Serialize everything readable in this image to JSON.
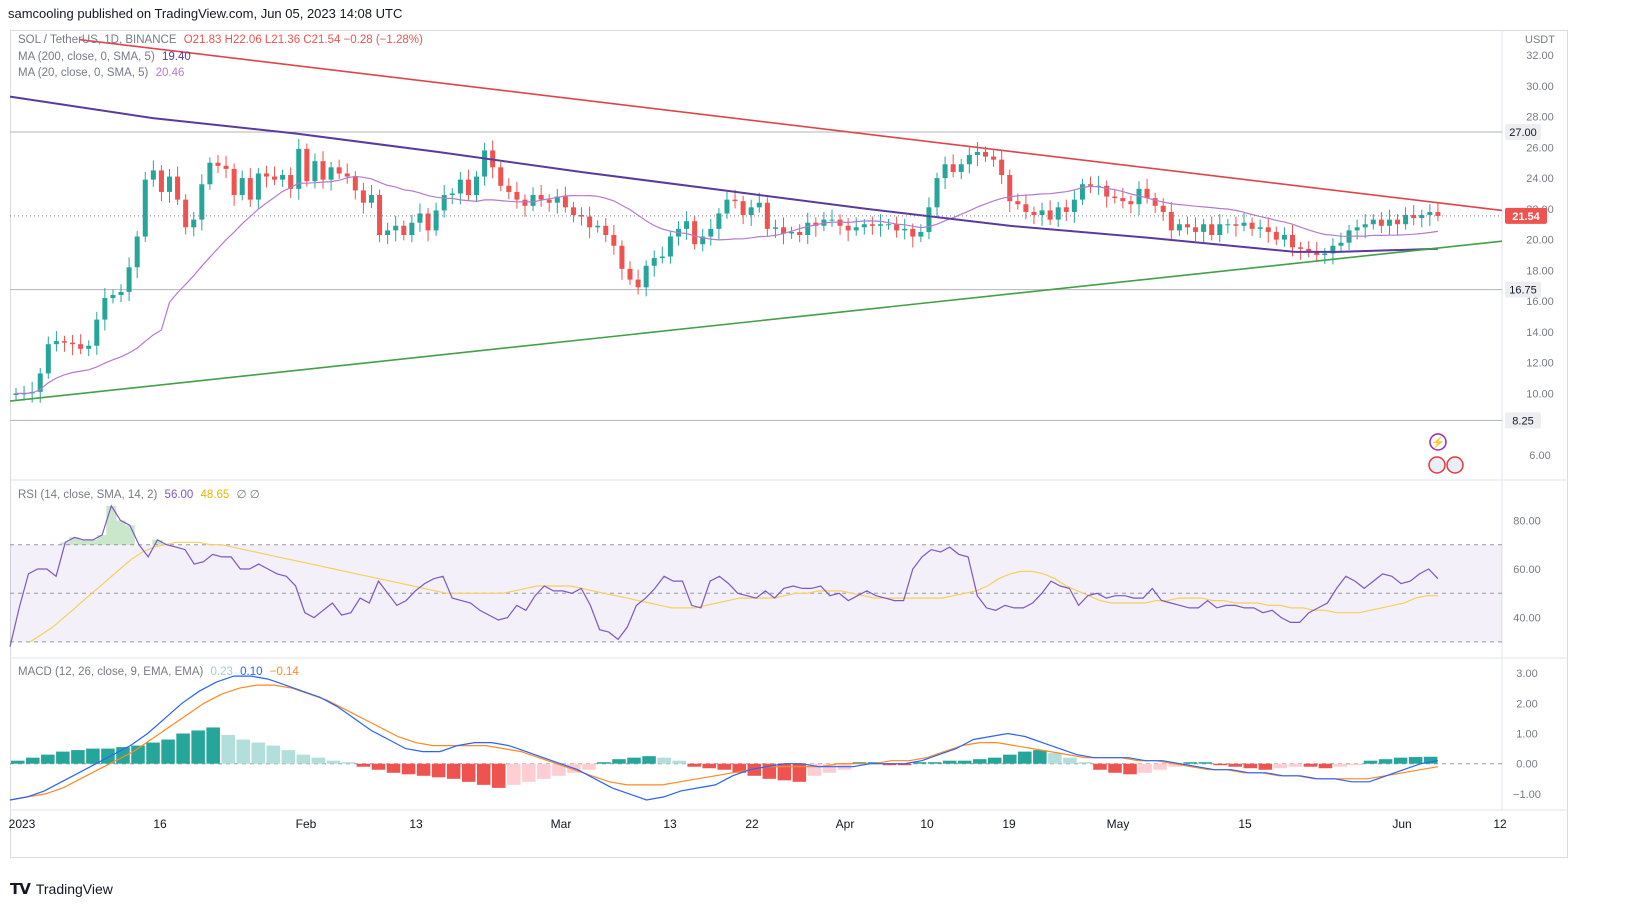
{
  "header": {
    "publisher": "samcooling published on TradingView.com, Jun 05, 2023 14:08 UTC"
  },
  "main_legend": {
    "symbol": "SOL / TetherUS, 1D, BINANCE",
    "ohlc": "O21.83  H22.06  L21.36  C21.54  −0.28 (−1.28%)",
    "ma200_label": "MA (200, close, 0, SMA, 5)",
    "ma200_value": "19.40",
    "ma20_label": "MA (20, close, 0, SMA, 5)",
    "ma20_value": "20.46"
  },
  "rsi_legend": {
    "label": "RSI (14, close, SMA, 14, 2)",
    "v1": "56.00",
    "v2": "48.65",
    "v3": "∅ ∅"
  },
  "macd_legend": {
    "label": "MACD (12, 26, close, 9, EMA, EMA)",
    "v1": "0.23",
    "v2": "0.10",
    "v3": "−0.14"
  },
  "footer": {
    "brand": "TradingView"
  },
  "colors": {
    "up": "#26a69a",
    "down": "#ef5350",
    "ma200": "#5b3aa0",
    "ma20": "#b57ad0",
    "trend_upper": "#e0434b",
    "trend_lower": "#43a047",
    "rsi": "#7e57c2",
    "rsi_ma": "#f5d05c",
    "macd": "#2962ff",
    "signal": "#ff8a20"
  },
  "chart_data": {
    "type": "candlestick",
    "title": "SOL / TetherUS, 1D, BINANCE",
    "currency": "USDT",
    "x_ticks": [
      "2023",
      "16",
      "Feb",
      "13",
      "Mar",
      "13",
      "22",
      "Apr",
      "10",
      "19",
      "May",
      "15",
      "Jun",
      "12"
    ],
    "y_ticks": [
      "32.00",
      "30.00",
      "28.00",
      "26.00",
      "24.00",
      "22.00",
      "20.00",
      "18.00",
      "16.00",
      "14.00",
      "12.00",
      "10.00",
      "6.00"
    ],
    "ylim": [
      4.5,
      33.5
    ],
    "price_close_series": [
      10.0,
      10.0,
      10.1,
      11.3,
      13.2,
      13.4,
      13.3,
      13.2,
      12.9,
      13.1,
      14.8,
      16.2,
      16.4,
      16.6,
      18.2,
      20.2,
      23.9,
      24.5,
      23.1,
      24.1,
      22.6,
      20.8,
      21.3,
      23.6,
      25.0,
      24.8,
      24.6,
      22.9,
      24.0,
      22.6,
      24.3,
      24.1,
      23.9,
      24.2,
      23.3,
      25.9,
      23.8,
      25.1,
      23.9,
      24.7,
      24.3,
      24.1,
      23.2,
      22.4,
      22.9,
      20.3,
      20.6,
      20.9,
      20.3,
      21.1,
      21.7,
      20.6,
      21.9,
      22.9,
      23.0,
      23.9,
      22.9,
      24.1,
      25.8,
      24.7,
      23.5,
      23.1,
      22.6,
      22.2,
      22.9,
      22.6,
      22.4,
      22.8,
      22.1,
      21.6,
      21.5,
      20.8,
      20.9,
      20.3,
      19.6,
      18.1,
      17.4,
      16.9,
      18.3,
      18.8,
      18.9,
      20.2,
      20.7,
      21.2,
      19.7,
      20.2,
      20.7,
      21.7,
      22.6,
      22.5,
      21.6,
      22.1,
      22.4,
      20.7,
      20.8,
      20.4,
      20.5,
      20.3,
      21.1,
      20.9,
      21.3,
      21.3,
      20.9,
      20.6,
      20.8,
      21.0,
      20.9,
      21.0,
      21.0,
      20.6,
      20.7,
      20.2,
      20.5,
      22.1,
      24.0,
      24.9,
      24.4,
      24.9,
      25.5,
      25.7,
      25.4,
      25.2,
      24.2,
      22.5,
      22.3,
      21.8,
      21.6,
      21.9,
      21.3,
      22.1,
      21.8,
      22.6,
      23.6,
      23.5,
      23.5,
      22.8,
      22.7,
      22.5,
      22.3,
      23.3,
      22.7,
      22.2,
      21.8,
      20.6,
      21.0,
      20.8,
      20.5,
      21.0,
      20.3,
      21.0,
      21.0,
      20.9,
      21.1,
      20.7,
      20.8,
      20.5,
      20.0,
      20.3,
      19.5,
      19.4,
      19.2,
      19.0,
      19.1,
      19.6,
      19.8,
      20.6,
      20.8,
      21.0,
      21.3,
      20.9,
      21.3,
      21.0,
      21.6,
      21.4,
      21.6,
      21.8,
      21.54
    ],
    "last_price": "21.54",
    "horizontal_levels": [
      "27.00",
      "16.75",
      "8.25"
    ],
    "ma200_last": "19.40",
    "ma20_last": "20.46",
    "annotations": [
      "trend-line resistance (red)",
      "trend-line support (green)"
    ],
    "rsi": {
      "ylim": [
        25,
        95
      ],
      "y_ticks": [
        "80.00",
        "60.00",
        "40.00"
      ],
      "band": [
        30,
        70
      ],
      "midline": 50,
      "values": [
        28,
        44,
        58,
        60,
        60,
        57,
        71,
        73,
        72,
        72,
        74,
        86,
        80,
        78,
        70,
        65,
        72,
        70,
        69,
        68,
        62,
        63,
        66,
        65,
        65,
        60,
        60,
        62,
        60,
        58,
        57,
        53,
        42,
        40,
        43,
        46,
        41,
        42,
        48,
        46,
        55,
        50,
        45,
        47,
        51,
        54,
        56,
        57,
        48,
        47,
        46,
        43,
        41,
        39,
        40,
        45,
        43,
        49,
        53,
        51,
        51,
        50,
        52,
        45,
        35,
        34,
        31,
        36,
        45,
        48,
        52,
        57,
        55,
        55,
        45,
        44,
        55,
        57,
        54,
        50,
        49,
        48,
        51,
        48,
        52,
        53,
        52,
        52,
        53,
        49,
        50,
        47,
        49,
        51,
        49,
        48,
        47,
        47,
        60,
        65,
        68,
        67,
        69,
        66,
        65,
        49,
        44,
        43,
        45,
        44,
        44,
        46,
        50,
        55,
        53,
        52,
        45,
        49,
        50,
        48,
        49,
        49,
        48,
        48,
        52,
        47,
        46,
        45,
        44,
        44,
        47,
        44,
        45,
        45,
        44,
        44,
        42,
        43,
        40,
        38,
        38,
        42,
        44,
        46,
        52,
        57,
        55,
        52,
        55,
        58,
        57,
        54,
        55,
        58,
        60,
        56
      ],
      "rsi_ma": [
        30,
        33,
        36,
        40,
        44,
        48,
        52,
        56,
        60,
        64,
        67,
        69,
        70,
        71,
        71,
        71,
        70,
        70,
        69,
        68,
        67,
        66,
        65,
        64,
        63,
        62,
        61,
        60,
        59,
        58,
        57,
        56,
        55,
        54,
        53,
        52,
        51,
        50,
        50,
        50,
        50,
        50,
        50,
        51,
        52,
        53,
        53,
        53,
        53,
        52,
        51,
        50,
        49,
        48,
        47,
        46,
        45,
        44,
        44,
        44,
        45,
        46,
        47,
        48,
        48,
        48,
        48,
        49,
        50,
        50,
        51,
        51,
        51,
        50,
        49,
        48,
        48,
        48,
        48,
        48,
        48,
        48,
        49,
        50,
        51,
        53,
        56,
        58,
        59,
        59,
        58,
        56,
        53,
        51,
        49,
        47,
        46,
        46,
        46,
        46,
        47,
        47,
        48,
        48,
        48,
        47,
        47,
        46,
        46,
        46,
        45,
        45,
        44,
        44,
        43,
        43,
        42,
        42,
        42,
        43,
        44,
        45,
        46,
        48,
        49,
        49
      ]
    },
    "macd": {
      "ylim": [
        -1.4,
        3.3
      ],
      "y_ticks": [
        "3.00",
        "2.00",
        "1.00",
        "0.00",
        "−1.00"
      ],
      "macd_line": [
        -1.2,
        -1.1,
        -0.9,
        -0.6,
        -0.3,
        0.0,
        0.3,
        0.6,
        1.0,
        1.5,
        2.0,
        2.4,
        2.7,
        2.9,
        2.9,
        2.8,
        2.6,
        2.4,
        2.2,
        1.9,
        1.5,
        1.1,
        0.8,
        0.5,
        0.4,
        0.4,
        0.6,
        0.7,
        0.7,
        0.6,
        0.4,
        0.2,
        0.0,
        -0.2,
        -0.5,
        -0.8,
        -1.0,
        -1.2,
        -1.1,
        -0.9,
        -0.8,
        -0.7,
        -0.4,
        -0.2,
        -0.1,
        0.0,
        0.0,
        -0.1,
        -0.1,
        -0.1,
        0.0,
        0.0,
        0.0,
        0.1,
        0.3,
        0.5,
        0.8,
        0.9,
        1.0,
        0.9,
        0.7,
        0.5,
        0.3,
        0.2,
        0.2,
        0.2,
        0.1,
        0.1,
        0.0,
        -0.1,
        -0.2,
        -0.2,
        -0.3,
        -0.3,
        -0.4,
        -0.4,
        -0.5,
        -0.5,
        -0.6,
        -0.6,
        -0.4,
        -0.2,
        0.0,
        0.1
      ],
      "signal_line": [
        -1.2,
        -1.1,
        -1.0,
        -0.8,
        -0.5,
        -0.2,
        0.1,
        0.4,
        0.8,
        1.2,
        1.6,
        2.0,
        2.3,
        2.5,
        2.6,
        2.6,
        2.5,
        2.3,
        2.1,
        1.8,
        1.5,
        1.2,
        0.9,
        0.7,
        0.6,
        0.6,
        0.6,
        0.6,
        0.5,
        0.4,
        0.2,
        0.0,
        -0.2,
        -0.4,
        -0.6,
        -0.7,
        -0.7,
        -0.7,
        -0.6,
        -0.5,
        -0.4,
        -0.3,
        -0.2,
        -0.1,
        -0.1,
        -0.1,
        -0.1,
        0.0,
        0.0,
        0.0,
        0.1,
        0.1,
        0.2,
        0.4,
        0.6,
        0.7,
        0.7,
        0.6,
        0.5,
        0.4,
        0.3,
        0.2,
        0.2,
        0.2,
        0.1,
        0.1,
        0.0,
        -0.1,
        -0.2,
        -0.2,
        -0.3,
        -0.3,
        -0.4,
        -0.4,
        -0.5,
        -0.5,
        -0.5,
        -0.5,
        -0.4,
        -0.3,
        -0.2,
        -0.1
      ],
      "histogram": [
        0.1,
        0.2,
        0.3,
        0.4,
        0.45,
        0.5,
        0.5,
        0.55,
        0.6,
        0.7,
        0.8,
        1.0,
        1.1,
        1.2,
        0.95,
        0.8,
        0.7,
        0.6,
        0.45,
        0.3,
        0.2,
        0.1,
        0.05,
        -0.1,
        -0.2,
        -0.3,
        -0.35,
        -0.4,
        -0.45,
        -0.5,
        -0.6,
        -0.7,
        -0.8,
        -0.7,
        -0.6,
        -0.5,
        -0.4,
        -0.3,
        -0.2,
        0.05,
        0.15,
        0.2,
        0.25,
        0.2,
        0.1,
        -0.1,
        -0.15,
        -0.2,
        -0.3,
        -0.4,
        -0.5,
        -0.55,
        -0.6,
        -0.4,
        -0.3,
        -0.2,
        0.05,
        0.05,
        -0.05,
        -0.05,
        0.05,
        0.05,
        0.1,
        0.1,
        0.15,
        0.2,
        0.3,
        0.4,
        0.45,
        0.35,
        0.2,
        0.05,
        -0.2,
        -0.3,
        -0.35,
        -0.3,
        -0.2,
        -0.1,
        0.05,
        0.05,
        -0.05,
        -0.1,
        -0.15,
        -0.2,
        -0.15,
        -0.1,
        -0.1,
        -0.15,
        -0.1,
        -0.05,
        0.1,
        0.15,
        0.2,
        0.22,
        0.23
      ]
    }
  }
}
